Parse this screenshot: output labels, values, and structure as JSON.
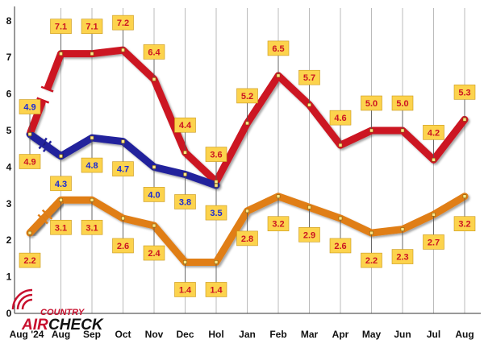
{
  "chart_data": {
    "type": "line",
    "categories": [
      "Aug '24",
      "Aug",
      "Sep",
      "Oct",
      "Nov",
      "Dec",
      "Hol",
      "Jan",
      "Feb",
      "Mar",
      "Apr",
      "May",
      "Jun",
      "Jul",
      "Aug"
    ],
    "ylim": [
      0,
      8
    ],
    "yticks": [
      "0",
      "1",
      "2",
      "3",
      "4",
      "5",
      "6",
      "7",
      "8"
    ],
    "grid": "vertical",
    "series": [
      {
        "color": "#cc1422",
        "x_start": 1,
        "values": [
          7.1,
          7.1,
          7.2,
          6.4,
          4.4,
          3.6,
          5.2,
          6.5,
          5.7,
          4.6,
          5.0,
          5.0,
          4.2,
          5.3
        ],
        "labels": [
          "7.1",
          "7.1",
          "7.2",
          "6.4",
          "4.4",
          "3.6",
          "5.2",
          "6.5",
          "5.7",
          "4.6",
          "5.0",
          "5.0",
          "4.2",
          "5.3"
        ],
        "offsets": [
          -1,
          -1,
          -1,
          -1,
          -1,
          -1,
          -1,
          -1,
          -1,
          -1,
          -1,
          -1,
          -1,
          -1
        ],
        "label_color": "#cc1422"
      },
      {
        "color": "#cc1422",
        "x_start": 0,
        "values": [
          4.9
        ],
        "labels": [
          "4.9"
        ],
        "offsets": [
          1
        ],
        "label_color": "#cc1422"
      },
      {
        "color": "#22229c",
        "x_start": 0,
        "values": [
          4.9,
          4.3,
          4.8,
          4.7,
          4.0,
          3.8,
          3.5
        ],
        "labels": [
          "4.9",
          "4.3",
          "4.8",
          "4.7",
          "4.0",
          "3.8",
          "3.5"
        ],
        "offsets": [
          -1,
          1,
          1,
          1,
          1,
          1,
          1
        ],
        "label_color": "#1a2ad6"
      },
      {
        "color": "#e07e17",
        "x_start": 0,
        "values": [
          2.2,
          3.1,
          3.1,
          2.6,
          2.4,
          1.4,
          1.4,
          2.8,
          3.2,
          2.9,
          2.6,
          2.2,
          2.3,
          2.7,
          3.2
        ],
        "labels": [
          "2.2",
          "3.1",
          "3.1",
          "2.6",
          "2.4",
          "1.4",
          "1.4",
          "2.8",
          "3.2",
          "2.9",
          "2.6",
          "2.2",
          "2.3",
          "2.7",
          "3.2"
        ],
        "offsets": [
          1,
          1,
          1,
          1,
          1,
          1,
          1,
          1,
          1,
          1,
          1,
          1,
          1,
          1,
          1
        ],
        "label_color": "#cc1422"
      }
    ],
    "breaks": [
      {
        "color": "#cc1422",
        "from": [
          0,
          4.9
        ],
        "to": [
          1,
          7.1
        ]
      },
      {
        "color": "#22229c",
        "from": [
          0,
          4.9
        ],
        "to": [
          1,
          4.3
        ]
      },
      {
        "color": "#e07e17",
        "from": [
          0,
          2.2
        ],
        "to": [
          1,
          3.1
        ]
      }
    ]
  },
  "logo": {
    "top": "COUNTRY",
    "bottom_left": "AIR",
    "bottom_right": "CHECK"
  },
  "colors": {
    "label_box": "#fcd34d",
    "label_border": "#c9971a",
    "axis": "#333333",
    "grid": "#aaaaaa"
  }
}
